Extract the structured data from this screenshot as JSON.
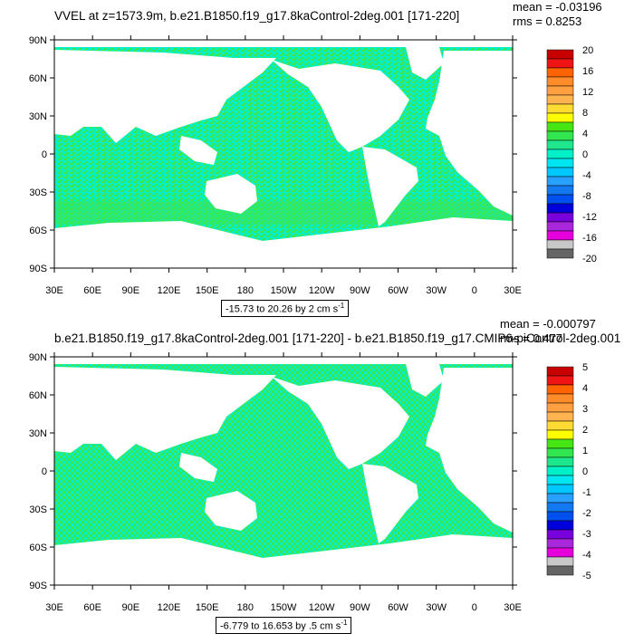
{
  "chart_data": [
    {
      "type": "heatmap",
      "title": "VVEL at z=1573.9m, b.e21.B1850.f19_g17.8kaControl-2deg.001 [171-220]",
      "stats": {
        "mean": "mean = -0.03196",
        "rms": "rms = 0.8253"
      },
      "caption": "-15.73 to 20.26 by 2 cm s",
      "caption_sup": "-1",
      "x_ticks": [
        "30E",
        "60E",
        "90E",
        "120E",
        "150E",
        "180",
        "150W",
        "120W",
        "90W",
        "60W",
        "30W",
        "0",
        "30E"
      ],
      "y_ticks": [
        "90N",
        "60N",
        "30N",
        "0",
        "30S",
        "60S",
        "90S"
      ],
      "xlim": [
        30,
        390
      ],
      "ylim": [
        -90,
        90
      ],
      "colorbar_labels": [
        "20",
        "16",
        "12",
        "8",
        "4",
        "0",
        "-4",
        "-8",
        "-12",
        "-16",
        "-20"
      ]
    },
    {
      "type": "heatmap",
      "title": "b.e21.B1850.f19_g17.8kaControl-2deg.001 [171-220] - b.e21.B1850.f19_g17.CMIP6-piControl-2deg.001",
      "stats": {
        "mean": "mean = -0.000797",
        "rms": "rms = 0.477"
      },
      "caption": "-6.779 to 16.653 by .5 cm s",
      "caption_sup": "-1",
      "x_ticks": [
        "30E",
        "60E",
        "90E",
        "120E",
        "150E",
        "180",
        "150W",
        "120W",
        "90W",
        "60W",
        "30W",
        "0",
        "30E"
      ],
      "y_ticks": [
        "90N",
        "60N",
        "30N",
        "0",
        "30S",
        "60S",
        "90S"
      ],
      "xlim": [
        30,
        390
      ],
      "ylim": [
        -90,
        90
      ],
      "colorbar_labels": [
        "5",
        "4",
        "3",
        "2",
        "1",
        "0",
        "-1",
        "-2",
        "-3",
        "-4",
        "-5"
      ]
    }
  ],
  "colors": {
    "ocean_main": "#00f0c8",
    "ocean_secondary": "#3ce650",
    "land": "#ffffff",
    "colorbar": [
      "#c80000",
      "#f01414",
      "#ff6400",
      "#ff8c28",
      "#ffa040",
      "#ffb450",
      "#ffdc32",
      "#ffff00",
      "#46e614",
      "#32e650",
      "#1ee68c",
      "#00f0c8",
      "#00e6f0",
      "#00c8ff",
      "#28a0ff",
      "#1478f0",
      "#0050f0",
      "#0000dc",
      "#7800dc",
      "#aa28dc",
      "#e600dc",
      "#c8c8c8",
      "#646464"
    ]
  }
}
